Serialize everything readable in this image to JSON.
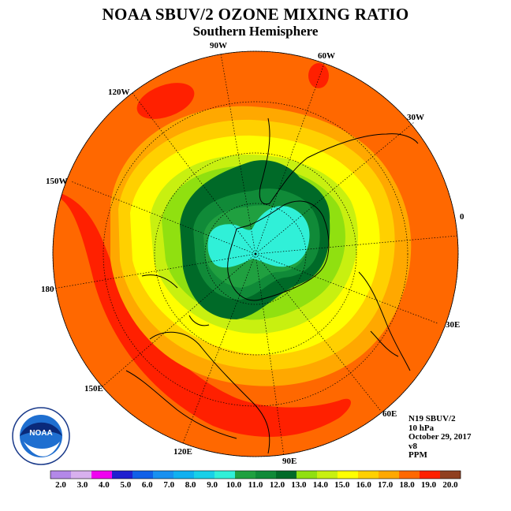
{
  "header": {
    "title": "NOAA SBUV/2 OZONE MIXING RATIO",
    "subtitle": "Southern Hemisphere"
  },
  "map": {
    "projection": "south polar stereographic",
    "longitude_labels": [
      "0",
      "30E",
      "60E",
      "90E",
      "120E",
      "150E",
      "180",
      "150W",
      "120W",
      "90W",
      "60W",
      "30W"
    ]
  },
  "info": {
    "instrument": "N19 SBUV/2",
    "level": "10 hPa",
    "date": "October 29, 2017",
    "version": "v8",
    "units": "PPM"
  },
  "logo": {
    "text": "NOAA"
  },
  "colorbar": {
    "labels": [
      "2.0",
      "3.0",
      "4.0",
      "5.0",
      "6.0",
      "7.0",
      "8.0",
      "9.0",
      "10.0",
      "11.0",
      "12.0",
      "13.0",
      "14.0",
      "15.0",
      "16.0",
      "17.0",
      "18.0",
      "19.0",
      "20.0"
    ],
    "colors": [
      "#b388e8",
      "#d8b0ee",
      "#f000f0",
      "#2020d0",
      "#1060e8",
      "#1890f0",
      "#10b0f0",
      "#18d0e8",
      "#30f0d8",
      "#20a040",
      "#108a38",
      "#006a28",
      "#90e010",
      "#c8f010",
      "#ffff00",
      "#ffd000",
      "#ffa800",
      "#ff6800",
      "#ff2000",
      "#904020"
    ]
  }
}
